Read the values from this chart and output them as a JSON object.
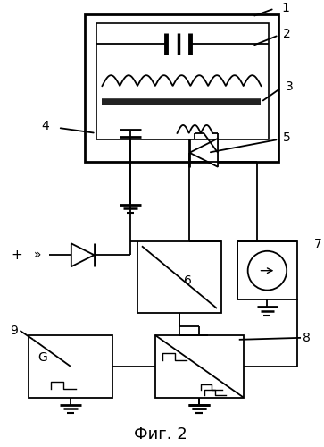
{
  "title": "Фиг. 2",
  "title_fontsize": 13,
  "bg_color": "#ffffff",
  "line_color": "#000000",
  "fig_width": 3.63,
  "fig_height": 5.0,
  "dpi": 100
}
